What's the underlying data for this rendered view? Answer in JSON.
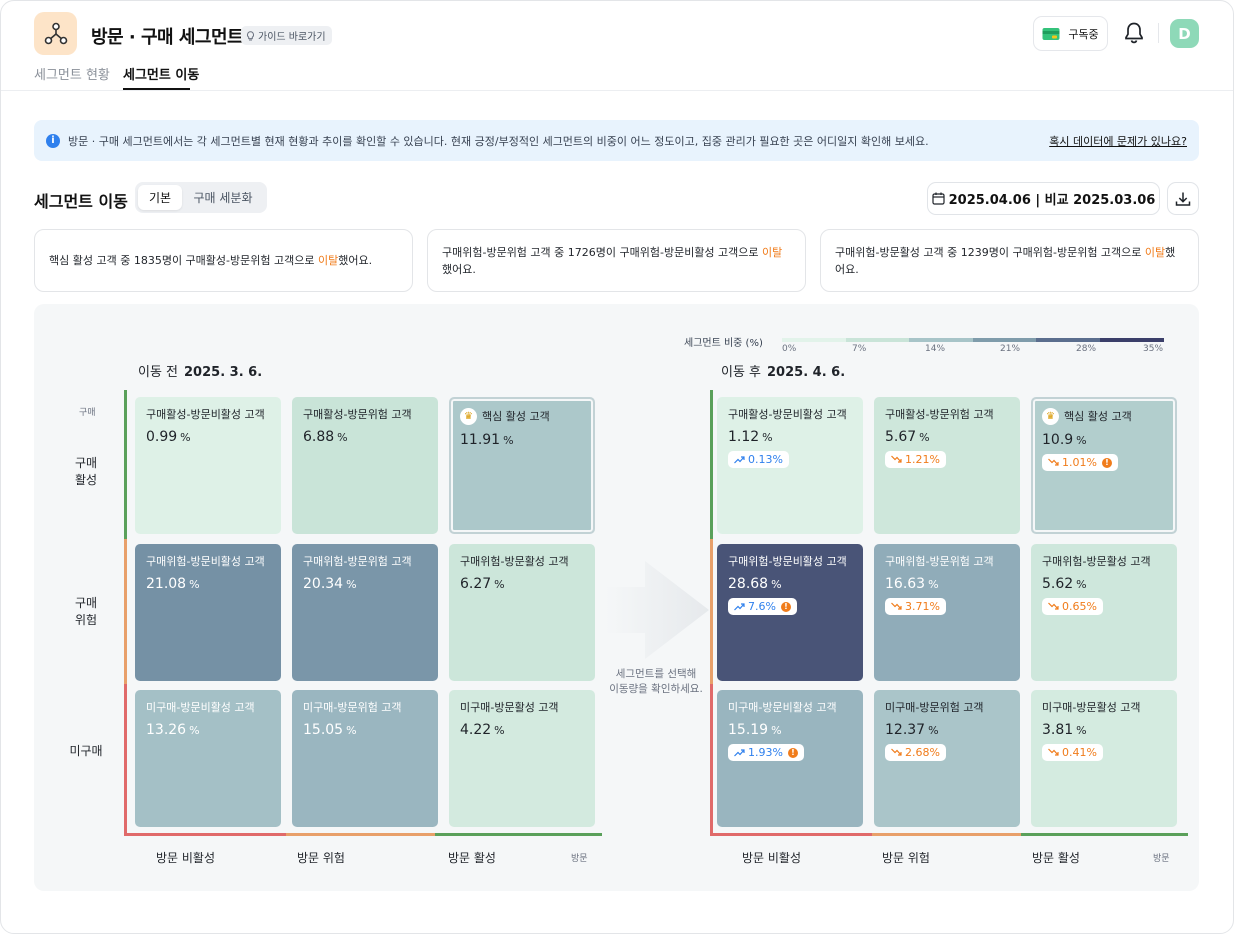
{
  "header": {
    "app_icon": "network-nodes-icon",
    "title": "방문 · 구매 세그먼트",
    "guide_label": "가이드 바로가기",
    "subscribe_label": "구독중",
    "avatar_initial": "D"
  },
  "tabs": [
    {
      "label": "세그먼트 현황",
      "active": false
    },
    {
      "label": "세그먼트 이동",
      "active": true
    }
  ],
  "notice": {
    "text": "방문 · 구매 세그먼트에서는 각 세그먼트별 현재 현황과 추이를 확인할 수 있습니다. 현재 긍정/부정적인 세그먼트의 비중이 어느 정도이고, 집중 관리가 필요한 곳은 어디일지 확인해 보세요.",
    "link": "혹시 데이터에 문제가 있나요?"
  },
  "section": {
    "title": "세그먼트 이동",
    "toggle": [
      "기본",
      "구매 세분화"
    ],
    "date_label": "2025.04.06 | 비교 2025.03.06"
  },
  "insights": [
    {
      "pre": "핵심 활성 고객 중 1835명이 구매활성-방문위험 고객으로 ",
      "hl": "이탈",
      "post": "했어요."
    },
    {
      "pre": "구매위험-방문위험 고객 중 1726명이 구매위험-방문비활성 고객으로 ",
      "hl": "이탈",
      "post": "했어요."
    },
    {
      "pre": "구매위험-방문활성 고객 중 1239명이 구매위험-방문위험 고객으로 ",
      "hl": "이탈",
      "post": "했어요."
    }
  ],
  "legend": {
    "title": "세그먼트 비중 (%)",
    "ticks": [
      "0%",
      "7%",
      "14%",
      "21%",
      "28%",
      "35%"
    ],
    "colors": [
      "#e2f3ea",
      "#c9e4d8",
      "#a7c4c8",
      "#7f9cab",
      "#5b6e8e",
      "#3b3f6a"
    ]
  },
  "before": {
    "label": "이동 전",
    "date": "2025. 3. 6.",
    "cells": [
      {
        "name": "구매활성-방문비활성 고객",
        "value": "0.99",
        "row": 0,
        "col": 0
      },
      {
        "name": "구매활성-방문위험 고객",
        "value": "6.88",
        "row": 0,
        "col": 1
      },
      {
        "name": "핵심 활성 고객",
        "value": "11.91",
        "row": 0,
        "col": 2,
        "core": true
      },
      {
        "name": "구매위험-방문비활성 고객",
        "value": "21.08",
        "row": 1,
        "col": 0
      },
      {
        "name": "구매위험-방문위험 고객",
        "value": "20.34",
        "row": 1,
        "col": 1
      },
      {
        "name": "구매위험-방문활성 고객",
        "value": "6.27",
        "row": 1,
        "col": 2
      },
      {
        "name": "미구매-방문비활성 고객",
        "value": "13.26",
        "row": 2,
        "col": 0
      },
      {
        "name": "미구매-방문위험 고객",
        "value": "15.05",
        "row": 2,
        "col": 1
      },
      {
        "name": "미구매-방문활성 고객",
        "value": "4.22",
        "row": 2,
        "col": 2
      }
    ]
  },
  "after": {
    "label": "이동 후",
    "date": "2025. 4. 6.",
    "cells": [
      {
        "name": "구매활성-방문비활성 고객",
        "value": "1.12",
        "change": "0.13%",
        "dir": "up",
        "warn": false,
        "row": 0,
        "col": 0
      },
      {
        "name": "구매활성-방문위험 고객",
        "value": "5.67",
        "change": "1.21%",
        "dir": "down",
        "warn": false,
        "row": 0,
        "col": 1
      },
      {
        "name": "핵심 활성 고객",
        "value": "10.9",
        "change": "1.01%",
        "dir": "down",
        "warn": true,
        "row": 0,
        "col": 2,
        "core": true
      },
      {
        "name": "구매위험-방문비활성 고객",
        "value": "28.68",
        "change": "7.6%",
        "dir": "up",
        "warn": true,
        "row": 1,
        "col": 0
      },
      {
        "name": "구매위험-방문위험 고객",
        "value": "16.63",
        "change": "3.71%",
        "dir": "down",
        "warn": false,
        "row": 1,
        "col": 1
      },
      {
        "name": "구매위험-방문활성 고객",
        "value": "5.62",
        "change": "0.65%",
        "dir": "down",
        "warn": false,
        "row": 1,
        "col": 2
      },
      {
        "name": "미구매-방문비활성 고객",
        "value": "15.19",
        "change": "1.93%",
        "dir": "up",
        "warn": true,
        "row": 2,
        "col": 0
      },
      {
        "name": "미구매-방문위험 고객",
        "value": "12.37",
        "change": "2.68%",
        "dir": "down",
        "warn": false,
        "row": 2,
        "col": 1
      },
      {
        "name": "미구매-방문활성 고객",
        "value": "3.81",
        "change": "0.41%",
        "dir": "down",
        "warn": false,
        "row": 2,
        "col": 2
      }
    ]
  },
  "axes": {
    "y_axis_title": "구매",
    "y_rows": [
      "구매\n활성",
      "구매\n위험",
      "미구매"
    ],
    "x_axis_title": "방문",
    "x_cols": [
      "방문 비활성",
      "방문 위험",
      "방문 활성"
    ],
    "row_colors": [
      "#5aa05a",
      "#e8a06a",
      "#e06a6a"
    ],
    "col_colors": [
      "#e06a6a",
      "#e8a06a",
      "#5aa05a"
    ]
  },
  "pct_unit": "%",
  "center_hint": "세그먼트를 선택해\n이동량을 확인하세요."
}
